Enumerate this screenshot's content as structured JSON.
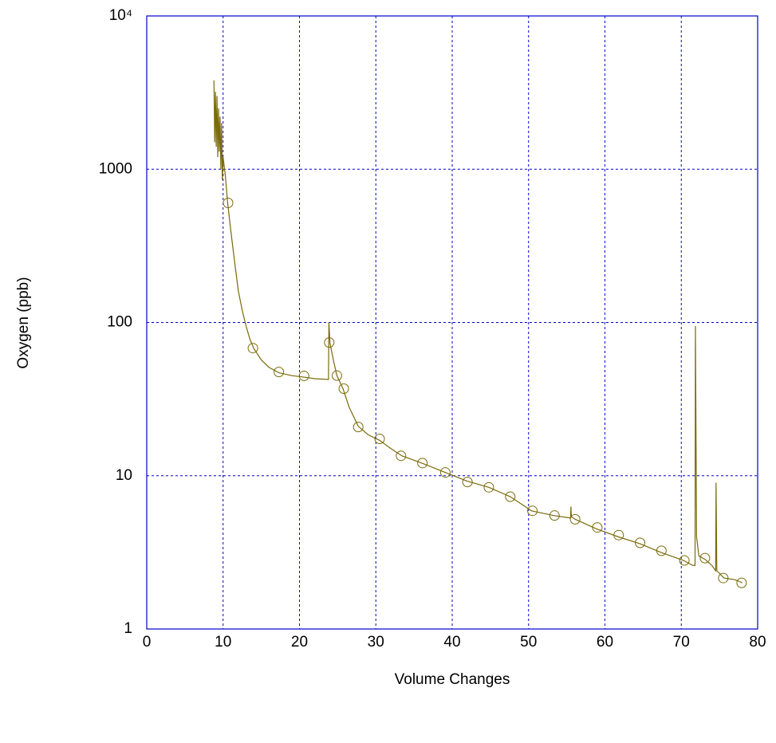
{
  "chart_data": {
    "type": "line",
    "xlabel": "Volume Changes",
    "ylabel": "Oxygen (ppb)",
    "xlim": [
      0,
      80
    ],
    "xticks": [
      0,
      10,
      20,
      30,
      40,
      50,
      60,
      70,
      80
    ],
    "ylim": [
      1,
      10000
    ],
    "yticks": [
      1,
      10,
      100,
      1000,
      {
        "value": 10000,
        "label": "10⁴"
      }
    ],
    "yscale": "log",
    "grid": true,
    "grid_color": "#0000cc",
    "frame_color": "#0000cc",
    "series": [
      {
        "color": "#7a6a0a",
        "marker": "none",
        "x": [
          8.8,
          8.9,
          9.0,
          9.1,
          9.2,
          9.3,
          9.4,
          9.5,
          9.6,
          9.7,
          9.8,
          9.9,
          10,
          10.3,
          10.6,
          11,
          11.5,
          12,
          12.5,
          13,
          13.5,
          14,
          15,
          16,
          17.3,
          19,
          20.6,
          22,
          23.8,
          23.85,
          24,
          24.5,
          24.9,
          25.7,
          26.5,
          27.7,
          29,
          30.5,
          32,
          33.4,
          36.2,
          39.1,
          42,
          44.8,
          47.6,
          50.4,
          53.3,
          55.5,
          55.55,
          55.6,
          56.1,
          58.9,
          61.7,
          64.6,
          67.4,
          70.3,
          71.5,
          71.8,
          71.85,
          72,
          72.3,
          73.1,
          74,
          74.5,
          74.55,
          74.65,
          75.6,
          77,
          78
        ],
        "values": [
          3800,
          1500,
          3200,
          1400,
          3000,
          1200,
          2500,
          1300,
          2200,
          1000,
          2000,
          850,
          1200,
          900,
          600,
          400,
          250,
          160,
          120,
          95,
          78,
          68,
          57,
          51,
          47,
          45,
          44,
          43,
          42.5,
          100,
          73,
          55,
          45,
          37,
          28,
          21,
          18.5,
          17,
          15,
          13.5,
          12,
          10.5,
          9.2,
          8.4,
          7.3,
          5.9,
          5.5,
          5.3,
          6.3,
          5.4,
          5.2,
          4.5,
          4.0,
          3.6,
          3.15,
          2.8,
          2.6,
          2.6,
          95,
          4,
          3.0,
          2.85,
          2.6,
          2.4,
          9,
          2.4,
          2.15,
          2.1,
          2.0
        ]
      },
      {
        "color": "#7a6a0a",
        "marker": "circle",
        "x": [
          10.65,
          13.9,
          17.3,
          20.6,
          23.9,
          24.9,
          25.8,
          27.7,
          30.5,
          33.3,
          36.1,
          39.1,
          42,
          44.8,
          47.6,
          50.5,
          53.4,
          56.1,
          59,
          61.8,
          64.6,
          67.4,
          70.4,
          73.1,
          75.5,
          77.9
        ],
        "values": [
          603,
          68,
          47.5,
          44.8,
          74,
          45,
          37,
          20.8,
          17.4,
          13.5,
          12.1,
          10.5,
          9.1,
          8.4,
          7.3,
          5.9,
          5.5,
          5.2,
          4.6,
          4.1,
          3.65,
          3.24,
          2.8,
          2.9,
          2.15,
          2.0
        ]
      }
    ]
  }
}
